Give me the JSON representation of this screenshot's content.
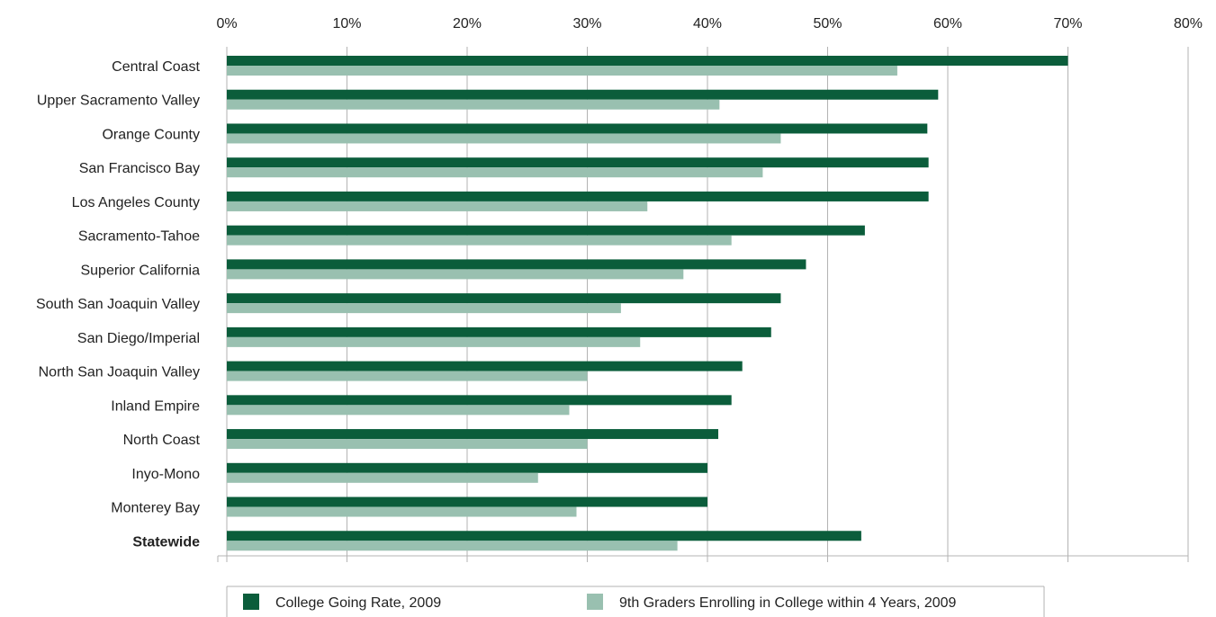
{
  "chart_data": {
    "type": "bar",
    "orientation": "horizontal",
    "title": "",
    "xlabel": "",
    "ylabel": "",
    "xlim": [
      0,
      80
    ],
    "x_ticks": [
      "0%",
      "10%",
      "20%",
      "30%",
      "40%",
      "50%",
      "60%",
      "70%",
      "80%"
    ],
    "grid": "vertical",
    "legend_position": "bottom",
    "categories": [
      "Central Coast",
      "Upper Sacramento Valley",
      "Orange County",
      "San Francisco Bay",
      "Los Angeles County",
      "Sacramento-Tahoe",
      "Superior California",
      "South San Joaquin Valley",
      "San Diego/Imperial",
      "North San Joaquin Valley",
      "Inland Empire",
      "North Coast",
      "Inyo-Mono",
      "Monterey Bay",
      "Statewide"
    ],
    "bold_categories": [
      "Statewide"
    ],
    "series": [
      {
        "name": "College Going Rate, 2009",
        "color": "#0b5d3b",
        "values": [
          70,
          59.2,
          58.3,
          58.4,
          58.4,
          53.1,
          48.2,
          46.1,
          45.3,
          42.9,
          42.0,
          40.9,
          40.0,
          40.0,
          52.8
        ]
      },
      {
        "name": "9th Graders Enrolling in College within 4 Years, 2009",
        "color": "#99c0b0",
        "values": [
          55.8,
          41.0,
          46.1,
          44.6,
          35.0,
          42.0,
          38.0,
          32.8,
          34.4,
          30.0,
          28.5,
          30.0,
          25.9,
          29.1,
          37.5
        ]
      }
    ]
  }
}
